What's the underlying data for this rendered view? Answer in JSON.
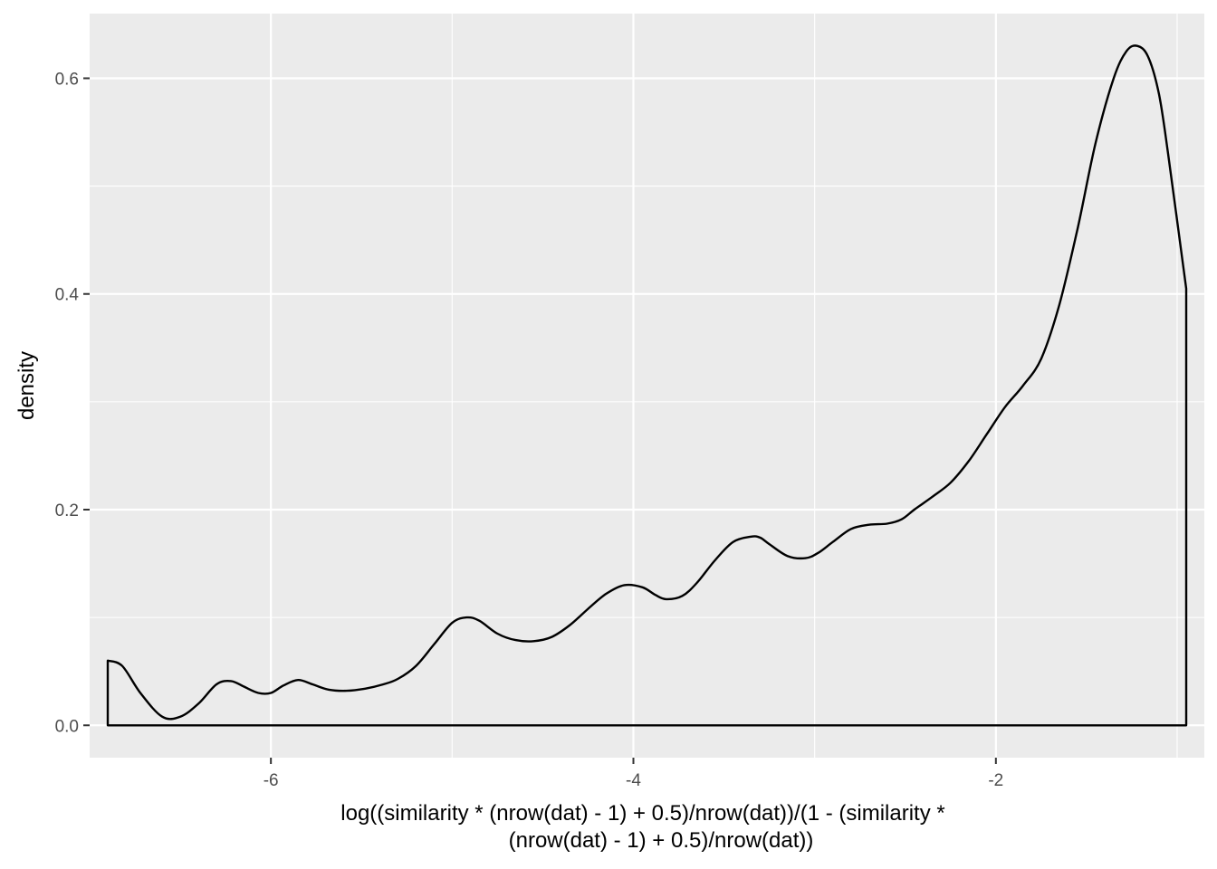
{
  "chart_data": {
    "type": "area",
    "title": "",
    "xlabel_lines": [
      "log((similarity * (nrow(dat) - 1) + 0.5)/nrow(dat))/(1 - (similarity *",
      "(nrow(dat) - 1) + 0.5)/nrow(dat))"
    ],
    "ylabel": "density",
    "xlim": [
      -7.0,
      -0.85
    ],
    "ylim": [
      -0.03,
      0.66
    ],
    "x_ticks": [
      -6,
      -4,
      -2
    ],
    "x_tick_labels": [
      "-6",
      "-4",
      "-2"
    ],
    "y_ticks": [
      0.0,
      0.2,
      0.4,
      0.6
    ],
    "y_tick_labels": [
      "0.0",
      "0.2",
      "0.4",
      "0.6"
    ],
    "grid": true,
    "legend": "none",
    "colors": {
      "panel_background": "#ebebeb",
      "grid_line": "#ffffff",
      "curve": "#000000",
      "tick_label": "#4d4d4d"
    },
    "series": [
      {
        "x": [
          -6.9,
          -6.82,
          -6.72,
          -6.6,
          -6.5,
          -6.4,
          -6.3,
          -6.22,
          -6.15,
          -6.07,
          -6.0,
          -5.93,
          -5.85,
          -5.77,
          -5.68,
          -5.58,
          -5.48,
          -5.38,
          -5.3,
          -5.2,
          -5.1,
          -5.0,
          -4.92,
          -4.85,
          -4.75,
          -4.65,
          -4.55,
          -4.45,
          -4.35,
          -4.25,
          -4.15,
          -4.05,
          -3.95,
          -3.88,
          -3.82,
          -3.73,
          -3.65,
          -3.55,
          -3.45,
          -3.35,
          -3.3,
          -3.25,
          -3.15,
          -3.05,
          -2.98,
          -2.9,
          -2.8,
          -2.7,
          -2.6,
          -2.52,
          -2.45,
          -2.35,
          -2.25,
          -2.15,
          -2.05,
          -1.95,
          -1.85,
          -1.75,
          -1.65,
          -1.55,
          -1.45,
          -1.35,
          -1.28,
          -1.22,
          -1.16,
          -1.1,
          -1.05,
          -0.95
        ],
        "y": [
          0.06,
          0.055,
          0.03,
          0.008,
          0.008,
          0.02,
          0.038,
          0.041,
          0.036,
          0.03,
          0.03,
          0.037,
          0.042,
          0.038,
          0.033,
          0.032,
          0.034,
          0.038,
          0.043,
          0.055,
          0.075,
          0.095,
          0.1,
          0.097,
          0.085,
          0.079,
          0.078,
          0.082,
          0.093,
          0.108,
          0.122,
          0.13,
          0.128,
          0.121,
          0.117,
          0.12,
          0.132,
          0.153,
          0.17,
          0.175,
          0.174,
          0.168,
          0.157,
          0.155,
          0.16,
          0.17,
          0.182,
          0.186,
          0.187,
          0.191,
          0.2,
          0.212,
          0.225,
          0.245,
          0.27,
          0.295,
          0.315,
          0.34,
          0.39,
          0.46,
          0.54,
          0.6,
          0.625,
          0.63,
          0.62,
          0.585,
          0.53,
          0.405
        ]
      }
    ]
  }
}
